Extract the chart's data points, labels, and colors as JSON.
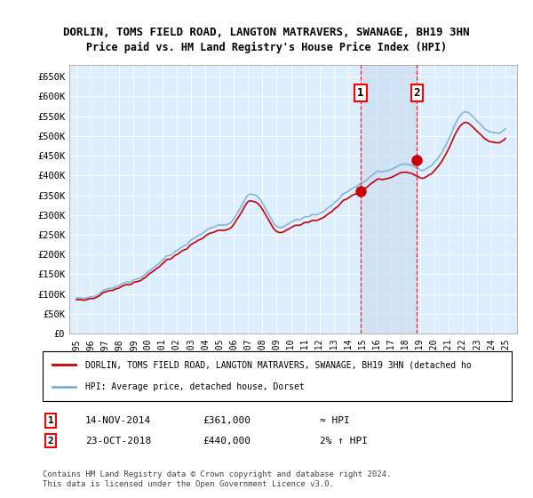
{
  "title1": "DORLIN, TOMS FIELD ROAD, LANGTON MATRAVERS, SWANAGE, BH19 3HN",
  "title2": "Price paid vs. HM Land Registry's House Price Index (HPI)",
  "ylabel_ticks": [
    "£0",
    "£50K",
    "£100K",
    "£150K",
    "£200K",
    "£250K",
    "£300K",
    "£350K",
    "£400K",
    "£450K",
    "£500K",
    "£550K",
    "£600K",
    "£650K"
  ],
  "ytick_vals": [
    0,
    50000,
    100000,
    150000,
    200000,
    250000,
    300000,
    350000,
    400000,
    450000,
    500000,
    550000,
    600000,
    650000
  ],
  "ylim": [
    0,
    680000
  ],
  "xlim_start": 1994.5,
  "xlim_end": 2025.8,
  "xtick_years": [
    1995,
    1996,
    1997,
    1998,
    1999,
    2000,
    2001,
    2002,
    2003,
    2004,
    2005,
    2006,
    2007,
    2008,
    2009,
    2010,
    2011,
    2012,
    2013,
    2014,
    2015,
    2016,
    2017,
    2018,
    2019,
    2020,
    2021,
    2022,
    2023,
    2024,
    2025
  ],
  "sale1_x": 2014.87,
  "sale1_y": 361000,
  "sale2_x": 2018.81,
  "sale2_y": 440000,
  "shade_color": "#ccddf0",
  "red_color": "#cc0000",
  "blue_color": "#7bafd4",
  "legend_label1": "DORLIN, TOMS FIELD ROAD, LANGTON MATRAVERS, SWANAGE, BH19 3HN (detached ho",
  "legend_label2": "HPI: Average price, detached house, Dorset",
  "annotation1_label": "14-NOV-2014",
  "annotation1_price": "£361,000",
  "annotation1_hpi": "≈ HPI",
  "annotation2_label": "23-OCT-2018",
  "annotation2_price": "£440,000",
  "annotation2_hpi": "2% ↑ HPI",
  "footer": "Contains HM Land Registry data © Crown copyright and database right 2024.\nThis data is licensed under the Open Government Licence v3.0.",
  "bg_color": "#ffffff",
  "plot_bg_color": "#ddeeff",
  "grid_color": "#ffffff"
}
